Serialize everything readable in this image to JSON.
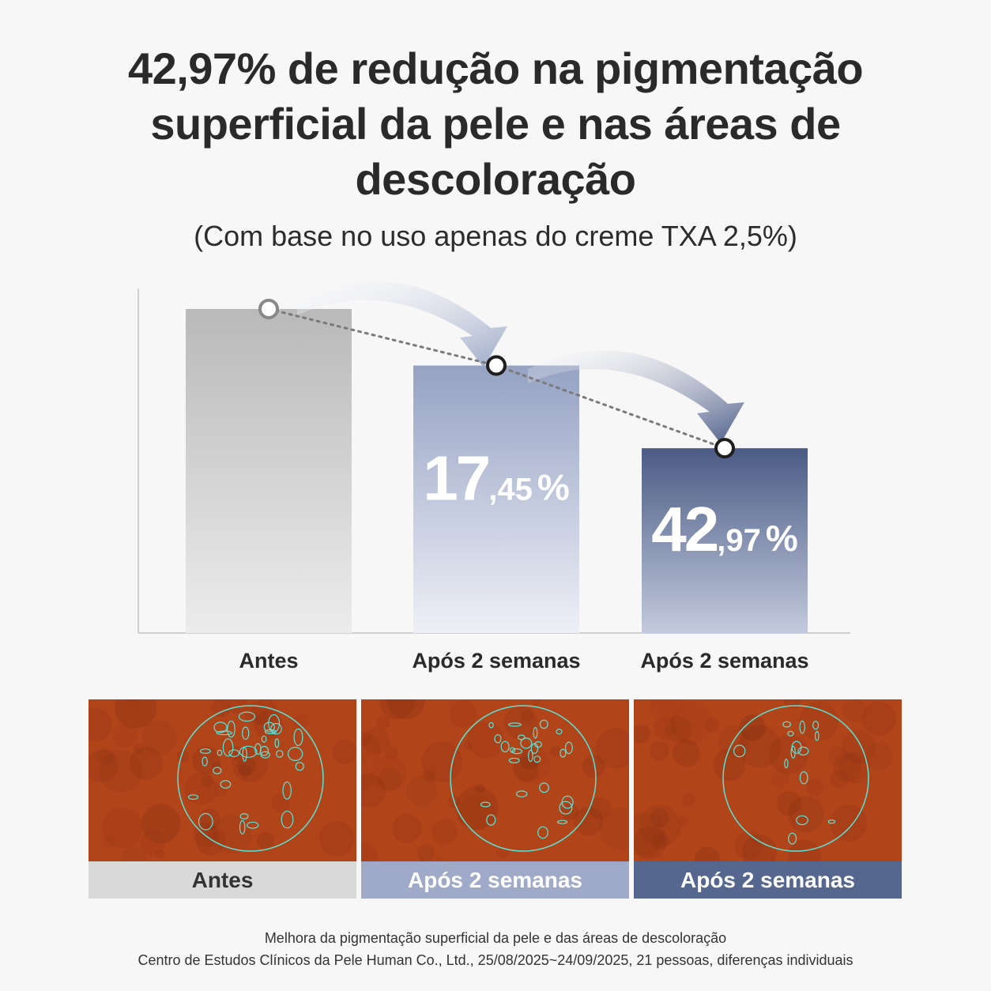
{
  "title_lines": [
    "42,97% de redução na pigmentação",
    "superficial da pele e nas áreas de",
    "descoloração"
  ],
  "subtitle": "(Com base no uso apenas do creme TXA 2,5%)",
  "chart_data": {
    "type": "bar",
    "categories": [
      "Antes",
      "Após 2 semanas",
      "Após 2 semanas"
    ],
    "values": [
      100,
      82.55,
      57.03
    ],
    "bar_labels": [
      null,
      {
        "big": "17",
        "small": ",45",
        "pct": "%"
      },
      {
        "big": "42",
        "small": ",97",
        "pct": "%"
      }
    ],
    "reduction_percent": [
      0,
      17.45,
      42.97
    ],
    "ylim": [
      0,
      110
    ],
    "grid": false,
    "trend_line": "dotted",
    "colors": {
      "bar1_top": "#b9b9b9",
      "bar1_bottom": "#ececec",
      "bar2_top": "#95a2c3",
      "bar2_bottom": "#eef0f7",
      "bar3_top": "#4a5b85",
      "bar3_bottom": "#c3cadd",
      "arrow1": "#9aa7c6",
      "arrow2": "#4a5a86"
    }
  },
  "photos": [
    {
      "label": "Antes",
      "label_bg": "#d9d9d9",
      "label_color": "#333333"
    },
    {
      "label": "Após 2 semanas",
      "label_bg": "#9eaac8",
      "label_color": "#ffffff"
    },
    {
      "label": "Após 2 semanas",
      "label_bg": "#55668f",
      "label_color": "#ffffff"
    }
  ],
  "skin_colors": {
    "base": "#b2441a",
    "dark": "#7a2a10",
    "outline": "#59e3d6"
  },
  "footer": {
    "line1": "Melhora da pigmentação superficial da pele e das áreas de descoloração",
    "line2": "Centro de Estudos Clínicos da Pele Human Co., Ltd., 25/08/2025~24/09/2025, 21 pessoas, diferenças individuais"
  }
}
